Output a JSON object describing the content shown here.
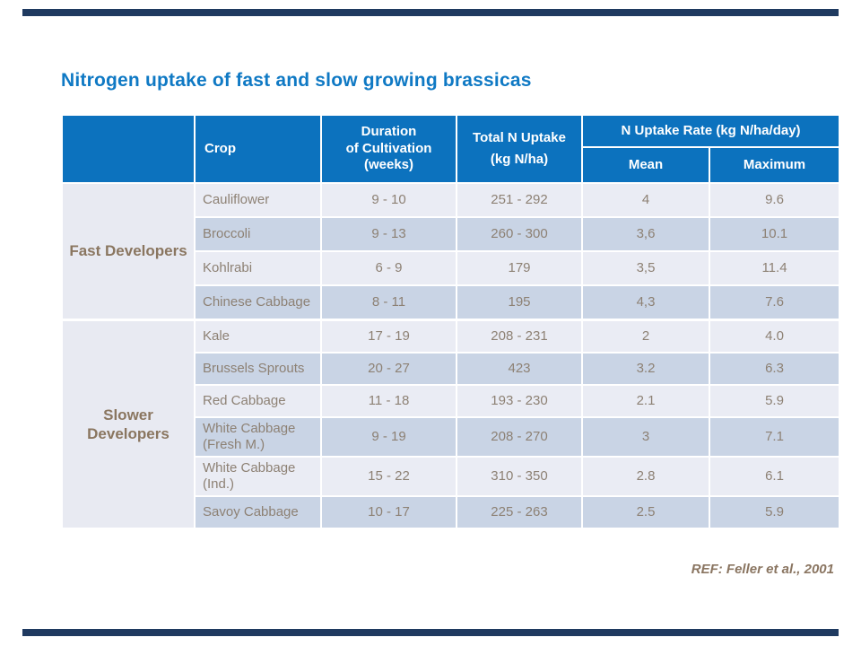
{
  "page": {
    "title": "Nitrogen uptake of fast and slow growing brassicas",
    "reference": "REF: Feller et al., 2001"
  },
  "colors": {
    "accent_bar": "#1f3a60",
    "title_text": "#0f79c4",
    "header_bg": "#0c72be",
    "header_text": "#ffffff",
    "row_light": "#eaecf4",
    "row_dark": "#c9d4e5",
    "group_cell_bg": "#e8eaf2",
    "body_text": "#8d8174",
    "group_text": "#8a7660"
  },
  "table": {
    "headers": {
      "group": "",
      "crop": "Crop",
      "duration_line1": "Duration",
      "duration_line2": "of Cultivation (weeks)",
      "total_line1": "Total N Uptake",
      "total_line2": "(kg N/ha)",
      "rate": "N Uptake Rate (kg N/ha/day)",
      "mean": "Mean",
      "maximum": "Maximum"
    },
    "groups": [
      {
        "label": "Fast Developers",
        "rows": [
          {
            "crop": "Cauliflower",
            "duration": "9 - 10",
            "total": "251 - 292",
            "mean": "4",
            "maximum": "9.6"
          },
          {
            "crop": "Broccoli",
            "duration": "9 - 13",
            "total": "260 - 300",
            "mean": "3,6",
            "maximum": "10.1"
          },
          {
            "crop": "Kohlrabi",
            "duration": "6 - 9",
            "total": "179",
            "mean": "3,5",
            "maximum": "11.4"
          },
          {
            "crop": "Chinese Cabbage",
            "duration": "8 - 11",
            "total": "195",
            "mean": "4,3",
            "maximum": "7.6"
          }
        ]
      },
      {
        "label": "Slower Developers",
        "rows": [
          {
            "crop": "Kale",
            "duration": "17 - 19",
            "total": "208 - 231",
            "mean": "2",
            "maximum": "4.0"
          },
          {
            "crop": "Brussels Sprouts",
            "duration": "20 - 27",
            "total": "423",
            "mean": "3.2",
            "maximum": "6.3"
          },
          {
            "crop": "Red Cabbage",
            "duration": "11 - 18",
            "total": "193 - 230",
            "mean": "2.1",
            "maximum": "5.9"
          },
          {
            "crop": "White Cabbage (Fresh M.)",
            "duration": "9 - 19",
            "total": "208 - 270",
            "mean": "3",
            "maximum": "7.1"
          },
          {
            "crop": "White Cabbage (Ind.)",
            "duration": "15 - 22",
            "total": "310 - 350",
            "mean": "2.8",
            "maximum": "6.1"
          },
          {
            "crop": "Savoy Cabbage",
            "duration": "10 - 17",
            "total": "225 - 263",
            "mean": "2.5",
            "maximum": "5.9"
          }
        ]
      }
    ]
  }
}
